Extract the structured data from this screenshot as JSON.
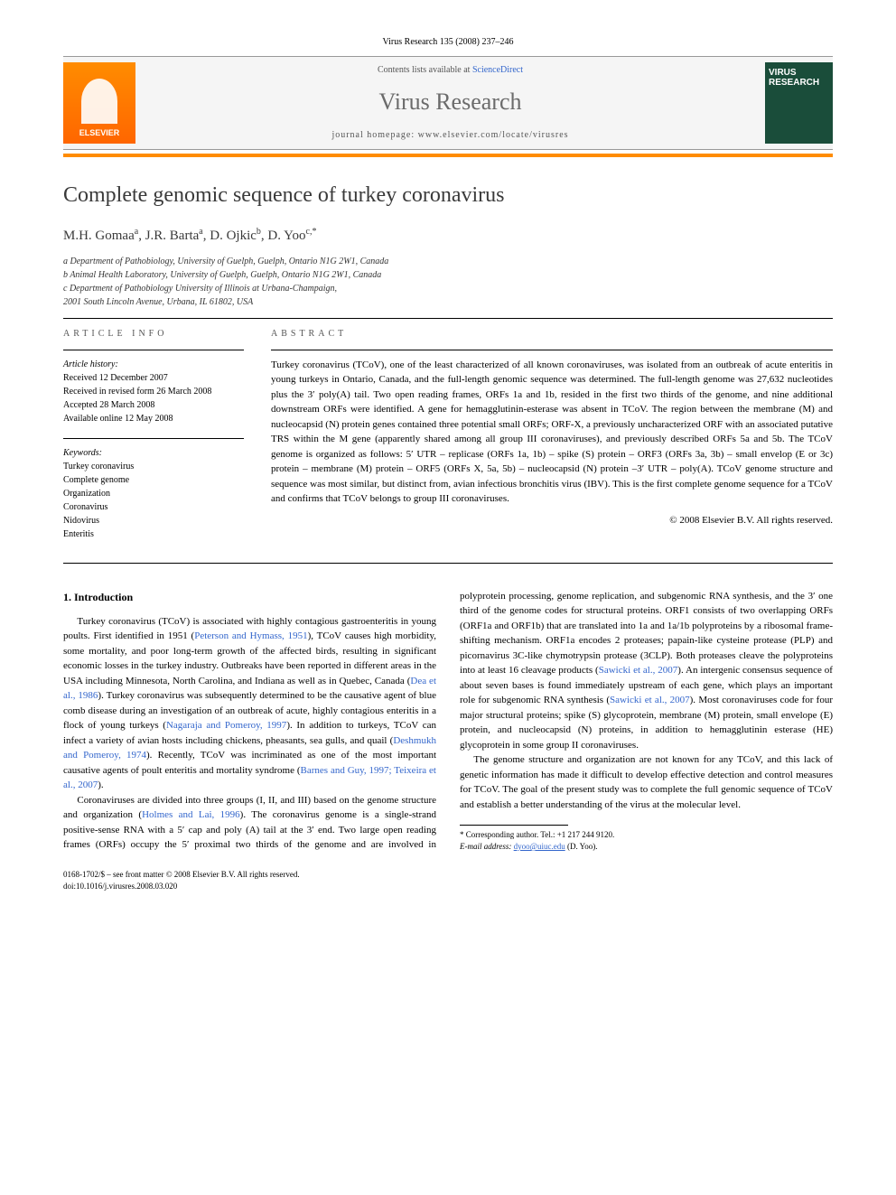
{
  "header": {
    "citation": "Virus Research 135 (2008) 237–246",
    "contents_prefix": "Contents lists available at ",
    "contents_link": "ScienceDirect",
    "journal": "Virus Research",
    "homepage_label": "journal homepage: ",
    "homepage_url": "www.elsevier.com/locate/virusres",
    "publisher": "ELSEVIER",
    "cover_title": "VIRUS RESEARCH"
  },
  "title": "Complete genomic sequence of turkey coronavirus",
  "authors_html": "M.H. Gomaa",
  "author_list": [
    {
      "name": "M.H. Gomaa",
      "aff": "a"
    },
    {
      "name": "J.R. Barta",
      "aff": "a"
    },
    {
      "name": "D. Ojkic",
      "aff": "b"
    },
    {
      "name": "D. Yoo",
      "aff": "c,*"
    }
  ],
  "affiliations": [
    "a Department of Pathobiology, University of Guelph, Guelph, Ontario N1G 2W1, Canada",
    "b Animal Health Laboratory, University of Guelph, Guelph, Ontario N1G 2W1, Canada",
    "c Department of Pathobiology University of Illinois at Urbana-Champaign,",
    "2001 South Lincoln Avenue, Urbana, IL 61802, USA"
  ],
  "article_info": {
    "heading": "article info",
    "history_label": "Article history:",
    "history": [
      "Received 12 December 2007",
      "Received in revised form 26 March 2008",
      "Accepted 28 March 2008",
      "Available online 12 May 2008"
    ],
    "keywords_label": "Keywords:",
    "keywords": [
      "Turkey coronavirus",
      "Complete genome",
      "Organization",
      "Coronavirus",
      "Nidovirus",
      "Enteritis"
    ]
  },
  "abstract": {
    "heading": "abstract",
    "text": "Turkey coronavirus (TCoV), one of the least characterized of all known coronaviruses, was isolated from an outbreak of acute enteritis in young turkeys in Ontario, Canada, and the full-length genomic sequence was determined. The full-length genome was 27,632 nucleotides plus the 3′ poly(A) tail. Two open reading frames, ORFs 1a and 1b, resided in the first two thirds of the genome, and nine additional downstream ORFs were identified. A gene for hemagglutinin-esterase was absent in TCoV. The region between the membrane (M) and nucleocapsid (N) protein genes contained three potential small ORFs; ORF-X, a previously uncharacterized ORF with an associated putative TRS within the M gene (apparently shared among all group III coronaviruses), and previously described ORFs 5a and 5b. The TCoV genome is organized as follows: 5′ UTR – replicase (ORFs 1a, 1b) – spike (S) protein – ORF3 (ORFs 3a, 3b) – small envelop (E or 3c) protein – membrane (M) protein – ORF5 (ORFs X, 5a, 5b) – nucleocapsid (N) protein –3′ UTR – poly(A). TCoV genome structure and sequence was most similar, but distinct from, avian infectious bronchitis virus (IBV). This is the first complete genome sequence for a TCoV and confirms that TCoV belongs to group III coronaviruses.",
    "copyright": "© 2008 Elsevier B.V. All rights reserved."
  },
  "body": {
    "section1_heading": "1. Introduction",
    "p1a": "Turkey coronavirus (TCoV) is associated with highly contagious gastroenteritis in young poults. First identified in 1951 (",
    "ref1": "Peterson and Hymass, 1951",
    "p1b": "), TCoV causes high morbidity, some mortality, and poor long-term growth of the affected birds, resulting in significant economic losses in the turkey industry. Outbreaks have been reported in different areas in the USA including Minnesota, North Carolina, and Indiana as well as in Quebec, Canada (",
    "ref2": "Dea et al., 1986",
    "p1c": "). Turkey coronavirus was subsequently determined to be the causative agent of blue comb disease during an investigation of an outbreak of acute, highly contagious enteritis in a flock of young turkeys (",
    "ref3": "Nagaraja and Pomeroy, 1997",
    "p1d": "). In addition to turkeys, TCoV can infect a variety of avian hosts including chickens, pheasants, sea gulls, and quail (",
    "ref4": "Deshmukh and Pomeroy, 1974",
    "p1e": "). Recently, TCoV was incriminated as one of the most important causative agents of poult enteritis and mortality syndrome (",
    "ref5": "Barnes and Guy, 1997; Teixeira et al., 2007",
    "p1f": ").",
    "p2a": "Coronaviruses are divided into three groups (I, II, and III) based on the genome structure and organization (",
    "ref6": "Holmes and Lai, 1996",
    "p2b": ").",
    "p3a": "The coronavirus genome is a single-strand positive-sense RNA with a 5′ cap and poly (A) tail at the 3′ end. Two large open reading frames (ORFs) occupy the 5′ proximal two thirds of the genome and are involved in polyprotein processing, genome replication, and subgenomic RNA synthesis, and the 3′ one third of the genome codes for structural proteins. ORF1 consists of two overlapping ORFs (ORF1a and ORF1b) that are translated into 1a and 1a/1b polyproteins by a ribosomal frame-shifting mechanism. ORF1a encodes 2 proteases; papain-like cysteine protease (PLP) and picornavirus 3C-like chymotrypsin protease (3CLP). Both proteases cleave the polyproteins into at least 16 cleavage products (",
    "ref7": "Sawicki et al., 2007",
    "p3b": "). An intergenic consensus sequence of about seven bases is found immediately upstream of each gene, which plays an important role for subgenomic RNA synthesis (",
    "ref8": "Sawicki et al., 2007",
    "p3c": "). Most coronaviruses code for four major structural proteins; spike (S) glycoprotein, membrane (M) protein, small envelope (E) protein, and nucleocapsid (N) proteins, in addition to hemagglutinin esterase (HE) glycoprotein in some group II coronaviruses.",
    "p4": "The genome structure and organization are not known for any TCoV, and this lack of genetic information has made it difficult to develop effective detection and control measures for TCoV. The goal of the present study was to complete the full genomic sequence of TCoV and establish a better understanding of the virus at the molecular level."
  },
  "footnote": {
    "corresponding": "* Corresponding author. Tel.: +1 217 244 9120.",
    "email_label": "E-mail address: ",
    "email": "dyoo@uiuc.edu",
    "email_suffix": " (D. Yoo)."
  },
  "footer": {
    "line1": "0168-1702/$ – see front matter © 2008 Elsevier B.V. All rights reserved.",
    "line2": "doi:10.1016/j.virusres.2008.03.020"
  },
  "colors": {
    "orange": "#ff8c00",
    "link": "#3366cc",
    "cover_bg": "#1a4d3a",
    "gray_text": "#6b6b6b"
  }
}
